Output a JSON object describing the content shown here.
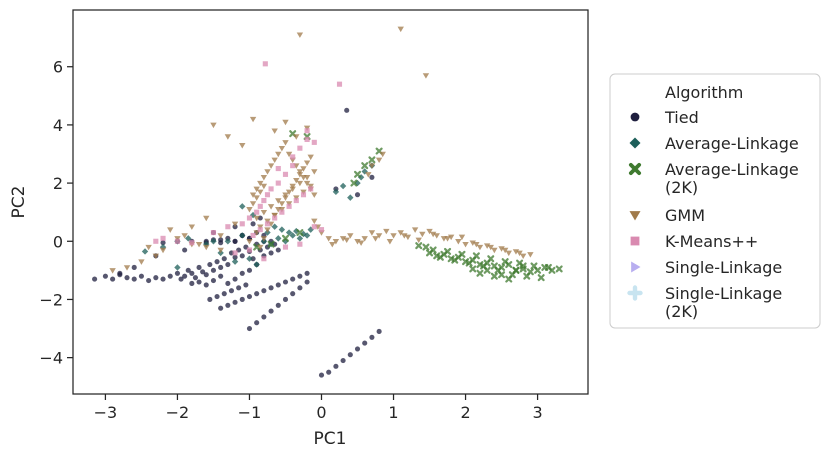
{
  "chart_data": {
    "type": "scatter",
    "title": "",
    "xlabel": "PC1",
    "ylabel": "PC2",
    "xlim": [
      -3.45,
      3.7
    ],
    "ylim": [
      -5.25,
      7.95
    ],
    "xticks": [
      -3,
      -2,
      -1,
      0,
      1,
      2,
      3
    ],
    "yticks": [
      -4,
      -2,
      0,
      2,
      4,
      6
    ],
    "grid": false,
    "legend": {
      "title": "Algorithm",
      "placement": "right-outside",
      "entries": [
        {
          "label": "Tied",
          "marker": "circle",
          "color": "#1f1f3f"
        },
        {
          "label": "Average-Linkage",
          "marker": "diamond",
          "color": "#1d5f5a"
        },
        {
          "label": "Average-Linkage",
          "label_line2": "(2K)",
          "marker": "x",
          "color": "#3f7a2f"
        },
        {
          "label": "GMM",
          "marker": "triangle-down",
          "color": "#a07a4a"
        },
        {
          "label": "K-Means++",
          "marker": "square",
          "color": "#d98ab0"
        },
        {
          "label": "Single-Linkage",
          "marker": "triangle-right",
          "color": "#b8aef0"
        },
        {
          "label": "Single-Linkage",
          "label_line2": "(2K)",
          "marker": "plus",
          "color": "#c8e4f0"
        }
      ]
    },
    "series": [
      {
        "name": "Tied",
        "marker": "circle",
        "color": "#1f1f3f",
        "x": [
          -3.15,
          -3.0,
          -2.9,
          -2.8,
          -2.7,
          -2.6,
          -2.5,
          -2.4,
          -2.3,
          -2.2,
          -2.1,
          -2.0,
          -1.95,
          -1.9,
          -1.85,
          -1.8,
          -1.75,
          -1.7,
          -1.65,
          -1.6,
          -1.55,
          -1.5,
          -1.45,
          -1.4,
          -1.35,
          -1.3,
          -1.25,
          -1.2,
          -1.15,
          -1.1,
          -1.05,
          -1.0,
          -0.95,
          -0.9,
          -0.85,
          -0.8,
          -0.75,
          -0.7,
          -0.65,
          -0.6,
          -1.8,
          -1.7,
          -1.6,
          -1.5,
          -1.4,
          -1.3,
          -1.2,
          -1.1,
          -1.0,
          -0.9,
          -1.6,
          -1.5,
          -1.4,
          -1.3,
          -1.2,
          -1.1,
          -1.0,
          -0.9,
          -0.8,
          -0.7,
          -1.55,
          -1.45,
          -1.35,
          -1.25,
          -1.15,
          -1.05,
          -2.2,
          -2.0,
          -1.8,
          -1.6,
          -1.4,
          -1.2,
          -1.0,
          -0.8,
          -1.4,
          -1.3,
          -1.2,
          -1.1,
          -1.0,
          -0.9,
          -0.8,
          -0.7,
          -0.6,
          -0.5,
          -0.4,
          -0.3,
          -0.2,
          -1.0,
          -0.9,
          -0.8,
          -0.7,
          -0.6,
          -0.5,
          -0.4,
          -0.3,
          -0.2,
          0.0,
          0.1,
          0.2,
          0.3,
          0.4,
          0.5,
          0.6,
          0.7,
          0.8,
          0.35,
          0.2,
          0.5,
          0.7,
          -1.5,
          -1.2,
          -0.95,
          -0.85,
          -1.1,
          -1.9,
          -2.3,
          -2.6,
          -2.8
        ],
        "y": [
          -1.3,
          -1.2,
          -1.3,
          -1.15,
          -1.25,
          -1.3,
          -1.2,
          -1.35,
          -1.25,
          -1.3,
          -1.2,
          -1.1,
          -1.3,
          -1.2,
          -1.0,
          -1.1,
          -1.25,
          -0.9,
          -1.05,
          -1.15,
          -0.8,
          -1.0,
          -0.7,
          -0.9,
          -0.6,
          -0.8,
          -0.4,
          -0.55,
          -0.3,
          -0.5,
          -0.2,
          -0.35,
          -0.6,
          -0.1,
          -0.3,
          -0.5,
          -0.2,
          -0.4,
          -0.1,
          -0.3,
          -1.45,
          -1.4,
          -1.5,
          -1.35,
          -1.2,
          -1.45,
          -1.3,
          -1.1,
          -1.0,
          -0.8,
          0.0,
          0.05,
          -0.05,
          0.1,
          0.0,
          0.2,
          0.1,
          0.3,
          0.2,
          0.0,
          -2.0,
          -1.9,
          -1.8,
          -1.7,
          -1.6,
          -1.5,
          -0.05,
          0.0,
          0.0,
          -0.05,
          0.05,
          0.0,
          0.1,
          0.0,
          -2.3,
          -2.2,
          -2.1,
          -2.0,
          -1.9,
          -1.8,
          -1.7,
          -1.6,
          -1.5,
          -1.4,
          -1.3,
          -1.2,
          -1.1,
          -3.0,
          -2.8,
          -2.6,
          -2.4,
          -2.2,
          -2.0,
          -1.8,
          -1.6,
          -1.4,
          -4.6,
          -4.5,
          -4.3,
          -4.1,
          -3.9,
          -3.7,
          -3.5,
          -3.3,
          -3.1,
          4.5,
          1.8,
          1.6,
          2.2,
          0.3,
          0.5,
          0.6,
          0.8,
          0.2,
          -0.3,
          -0.5,
          -0.9,
          -1.1
        ]
      },
      {
        "name": "Average-Linkage",
        "marker": "diamond",
        "color": "#1d5f5a",
        "x": [
          -2.45,
          -2.2,
          -2.0,
          -1.85,
          -1.6,
          -1.5,
          -1.1,
          -0.95,
          -0.8,
          -0.7,
          -0.6,
          -0.5,
          -0.4,
          -0.3,
          -0.2,
          -1.3,
          -1.1,
          0.2,
          0.3,
          0.4,
          0.5,
          0.55,
          0.6,
          0.7,
          -2.0,
          -1.4,
          -1.2,
          -0.9,
          -1.0,
          -0.75,
          -0.65,
          -0.55,
          -0.45,
          -0.35,
          -0.25,
          -0.15
        ],
        "y": [
          -0.35,
          -0.2,
          0.0,
          0.1,
          -0.1,
          0.0,
          1.2,
          0.9,
          0.0,
          -0.1,
          0.1,
          0.0,
          0.2,
          0.1,
          0.2,
          0.0,
          0.2,
          1.7,
          1.9,
          1.5,
          2.0,
          2.2,
          2.4,
          2.6,
          -0.9,
          -0.4,
          -0.7,
          -0.8,
          -0.6,
          0.3,
          0.5,
          0.4,
          0.3,
          0.35,
          0.25,
          0.4
        ],
        "note": "approximate"
      },
      {
        "name": "Average-Linkage (2K)",
        "marker": "x",
        "color": "#3f7a2f",
        "x": [
          1.5,
          1.6,
          1.7,
          1.8,
          1.9,
          2.0,
          2.1,
          2.2,
          2.3,
          2.4,
          2.5,
          2.6,
          2.7,
          2.8,
          2.9,
          3.0,
          3.1,
          3.2,
          3.3,
          1.55,
          1.65,
          1.75,
          1.85,
          1.95,
          2.05,
          2.15,
          2.25,
          2.35,
          2.45,
          2.55,
          2.65,
          2.75,
          2.85,
          2.95,
          3.05,
          3.15,
          1.45,
          1.35,
          2.1,
          2.2,
          2.3,
          2.4,
          2.5,
          2.6,
          2.7,
          2.8,
          -0.9,
          -0.7,
          -0.5,
          -0.3,
          0.45,
          0.5,
          0.6,
          0.7,
          0.8,
          -0.4,
          -0.2
        ],
        "y": [
          -0.4,
          -0.5,
          -0.45,
          -0.6,
          -0.55,
          -0.7,
          -0.65,
          -0.8,
          -0.75,
          -0.85,
          -0.9,
          -0.8,
          -1.0,
          -0.95,
          -1.05,
          -1.0,
          -0.9,
          -1.0,
          -0.95,
          -0.3,
          -0.55,
          -0.35,
          -0.65,
          -0.45,
          -0.75,
          -0.5,
          -0.85,
          -0.6,
          -1.0,
          -0.7,
          -1.15,
          -0.75,
          -1.2,
          -0.85,
          -1.25,
          -0.9,
          -0.2,
          -0.15,
          -0.95,
          -1.1,
          -1.0,
          -1.2,
          -1.15,
          -1.3,
          -1.0,
          -0.85,
          -0.2,
          -0.1,
          0.1,
          0.3,
          2.0,
          2.3,
          2.6,
          2.8,
          3.1,
          3.7,
          3.6
        ],
        "note": "approximate"
      },
      {
        "name": "GMM",
        "marker": "triangle-down",
        "color": "#a07a4a",
        "x": [
          -2.7,
          -2.5,
          -2.3,
          -2.2,
          -2.1,
          -1.9,
          -1.8,
          -1.6,
          -1.4,
          -1.2,
          -1.0,
          -0.9,
          -0.85,
          -0.8,
          -0.75,
          -0.7,
          -0.65,
          -0.6,
          -0.55,
          -0.5,
          -0.45,
          -0.4,
          -0.35,
          -0.3,
          -0.25,
          -0.2,
          -0.15,
          -0.1,
          -0.05,
          0.0,
          -0.95,
          -0.9,
          -0.85,
          -0.8,
          -0.75,
          -0.7,
          -0.65,
          -0.6,
          -0.55,
          -0.5,
          -0.45,
          -0.4,
          -0.35,
          -0.3,
          -0.25,
          -0.2,
          -0.15,
          -0.1,
          -0.9,
          -0.8,
          -0.7,
          -0.6,
          -0.5,
          -0.4,
          -0.3,
          -0.2,
          -0.1,
          -0.85,
          -0.75,
          -0.65,
          -0.55,
          -0.45,
          -0.35,
          -0.25,
          -0.15,
          -1.0,
          -0.95,
          -0.9,
          -0.85,
          -0.8,
          0.1,
          0.2,
          0.3,
          0.4,
          0.5,
          0.6,
          0.7,
          0.8,
          0.9,
          1.0,
          1.1,
          1.2,
          1.3,
          1.4,
          1.5,
          1.6,
          1.7,
          1.8,
          1.9,
          2.0,
          2.1,
          2.2,
          2.3,
          2.4,
          2.5,
          2.6,
          2.7,
          2.8,
          2.9,
          0.15,
          0.35,
          0.55,
          0.75,
          0.95,
          1.15,
          1.35,
          1.55,
          1.75,
          1.95,
          2.15,
          2.35,
          2.55,
          2.75,
          -0.3,
          1.1,
          1.45,
          -1.5,
          -1.3,
          -1.1,
          -0.95,
          -1.8,
          -1.6,
          -0.65,
          -0.5,
          -0.35,
          -0.2,
          0.7,
          0.85,
          0.65,
          0.8,
          -2.9,
          -2.4,
          -2.0,
          -1.7,
          -1.4
        ],
        "y": [
          -0.9,
          -0.7,
          -0.5,
          -0.3,
          0.4,
          0.2,
          0.5,
          0.8,
          -0.3,
          0.6,
          0.0,
          0.3,
          -0.2,
          0.1,
          0.4,
          0.6,
          0.9,
          1.1,
          1.3,
          1.5,
          1.7,
          1.9,
          2.1,
          2.3,
          2.5,
          2.7,
          2.9,
          0.7,
          0.5,
          0.3,
          1.6,
          1.8,
          2.0,
          2.2,
          2.4,
          2.6,
          2.8,
          3.0,
          3.2,
          3.4,
          3.0,
          2.8,
          2.6,
          2.4,
          2.2,
          2.0,
          1.8,
          1.6,
          0.8,
          1.0,
          1.2,
          1.4,
          1.6,
          1.8,
          2.0,
          2.2,
          2.4,
          0.5,
          0.7,
          0.9,
          1.1,
          1.3,
          1.5,
          1.7,
          1.9,
          1.1,
          1.3,
          1.5,
          1.7,
          1.9,
          0.1,
          0.0,
          0.1,
          0.2,
          0.0,
          0.1,
          0.3,
          0.2,
          0.35,
          0.2,
          0.3,
          0.15,
          0.4,
          0.25,
          0.35,
          0.2,
          0.1,
          0.15,
          0.0,
          -0.1,
          -0.05,
          -0.2,
          -0.15,
          -0.3,
          -0.25,
          -0.4,
          -0.35,
          -0.5,
          -0.45,
          -0.1,
          0.05,
          -0.05,
          0.1,
          0.0,
          0.2,
          0.05,
          0.25,
          0.1,
          0.15,
          -0.1,
          -0.2,
          -0.3,
          -0.4,
          7.1,
          7.3,
          5.7,
          4.0,
          3.6,
          3.3,
          4.2,
          -0.1,
          -0.2,
          3.8,
          4.1,
          3.6,
          3.9,
          2.6,
          3.0,
          2.3,
          2.8,
          -1.0,
          -0.2,
          0.1,
          -0.1,
          0.2
        ],
        "note": "approximate"
      },
      {
        "name": "K-Means++",
        "marker": "square",
        "color": "#d98ab0",
        "x": [
          -2.3,
          -2.2,
          -2.0,
          -1.8,
          -1.5,
          -1.3,
          -1.1,
          -1.0,
          -0.9,
          -0.85,
          -0.8,
          -0.75,
          -0.7,
          -0.6,
          -0.5,
          -0.4,
          -0.3,
          -0.2,
          -0.1,
          -0.95,
          -0.85,
          -0.75,
          -0.65,
          -0.55,
          -0.45,
          -0.35,
          -0.25,
          -0.15,
          -0.78,
          0.25,
          -0.6,
          -0.4,
          -0.2,
          -0.1,
          0.0,
          -1.2,
          -1.0,
          -0.8,
          -0.5,
          -0.3
        ],
        "y": [
          0.0,
          0.1,
          0.0,
          -0.05,
          0.3,
          0.5,
          0.6,
          0.8,
          1.0,
          1.2,
          1.4,
          1.6,
          1.8,
          2.0,
          2.3,
          2.6,
          3.2,
          3.5,
          0.5,
          0.2,
          0.4,
          0.6,
          0.8,
          1.0,
          1.2,
          1.4,
          1.6,
          1.8,
          6.1,
          5.4,
          2.5,
          2.9,
          3.8,
          3.4,
          0.4,
          -0.4,
          -0.3,
          -0.6,
          -0.2,
          -0.1
        ],
        "note": "approximate"
      },
      {
        "name": "Single-Linkage",
        "marker": "triangle-right",
        "color": "#b8aef0",
        "x": [],
        "y": []
      },
      {
        "name": "Single-Linkage (2K)",
        "marker": "plus",
        "color": "#c8e4f0",
        "x": [],
        "y": []
      }
    ]
  }
}
